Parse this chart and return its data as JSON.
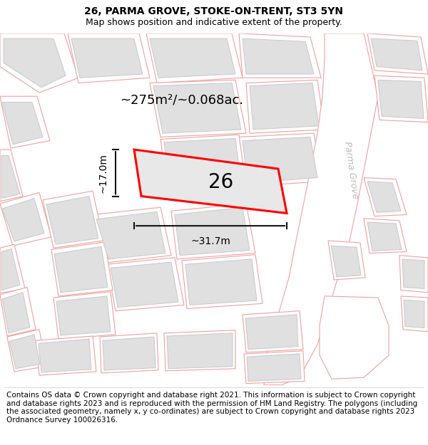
{
  "title_line1": "26, PARMA GROVE, STOKE-ON-TRENT, ST3 5YN",
  "title_line2": "Map shows position and indicative extent of the property.",
  "footer_text": "Contains OS data © Crown copyright and database right 2021. This information is subject to Crown copyright and database rights 2023 and is reproduced with the permission of HM Land Registry. The polygons (including the associated geometry, namely x, y co-ordinates) are subject to Crown copyright and database rights 2023 Ordnance Survey 100026316.",
  "area_label": "~275m²/~0.068ac.",
  "width_label": "~31.7m",
  "height_label": "~17.0m",
  "plot_number": "26",
  "map_bg": "#ffffff",
  "building_fill": "#e0e0e0",
  "building_edge": "#c8c8c8",
  "cadastral_color": "#f0a0a0",
  "plot_edge": "#ff0000",
  "plot_fill": "#e8e8e8",
  "street_label": "Parma Grove",
  "street_label_color": "#bbbbbb",
  "dim_color": "#111111",
  "title_fontsize": 10,
  "subtitle_fontsize": 9,
  "footer_fontsize": 7.5,
  "area_fontsize": 13,
  "plot_num_fontsize": 20,
  "dim_fontsize": 10
}
